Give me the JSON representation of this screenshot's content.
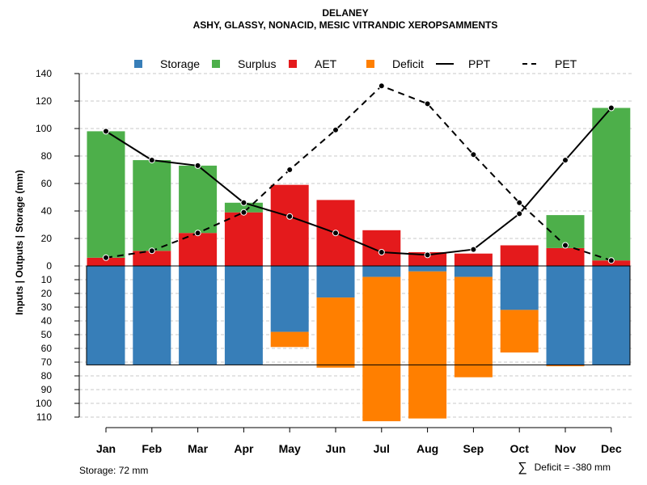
{
  "chart_data": {
    "type": "bar",
    "title": "DELANEY",
    "subtitle": "ASHY, GLASSY, NONACID, MESIC VITRANDIC XEROPSAMMENTS",
    "ylabel": "Inputs | Outputs | Storage    (mm)",
    "xlabel": "",
    "categories": [
      "Jan",
      "Feb",
      "Mar",
      "Apr",
      "May",
      "Jun",
      "Jul",
      "Aug",
      "Sep",
      "Oct",
      "Nov",
      "Dec"
    ],
    "ylim_top": [
      0,
      140
    ],
    "ylim_bottom": [
      0,
      110
    ],
    "yticks_top": [
      0,
      20,
      40,
      60,
      80,
      100,
      120,
      140
    ],
    "yticks_bottom": [
      10,
      20,
      30,
      40,
      50,
      60,
      70,
      80,
      90,
      100,
      110
    ],
    "top_series": [
      {
        "name": "AET",
        "color": "#E41A1C",
        "values": [
          6,
          11,
          24,
          39,
          59,
          48,
          26,
          10,
          9,
          15,
          13,
          4
        ]
      },
      {
        "name": "Surplus",
        "color": "#4DAF4A",
        "values": [
          92,
          66,
          49,
          7,
          0,
          0,
          0,
          0,
          0,
          0,
          24,
          111
        ]
      }
    ],
    "bottom_series": [
      {
        "name": "Storage",
        "color": "#377EB8",
        "values": [
          72,
          72,
          72,
          72,
          48,
          23,
          8,
          4,
          8,
          32,
          72,
          72
        ]
      },
      {
        "name": "Deficit",
        "color": "#FF7F00",
        "values": [
          0,
          0,
          0,
          0,
          11,
          51,
          105,
          107,
          73,
          31,
          1,
          0
        ]
      }
    ],
    "line_series": [
      {
        "name": "PPT",
        "style": "solid",
        "values": [
          98,
          77,
          73,
          46,
          36,
          24,
          10,
          8,
          12,
          38,
          77,
          115
        ]
      },
      {
        "name": "PET",
        "style": "dashed",
        "values": [
          6,
          11,
          24,
          39,
          70,
          99,
          131,
          118,
          81,
          46,
          15,
          4
        ]
      }
    ],
    "storage_capacity": 72,
    "legend": {
      "position": "top",
      "items": [
        {
          "label": "Storage",
          "kind": "box",
          "color": "#377EB8"
        },
        {
          "label": "Surplus",
          "kind": "box",
          "color": "#4DAF4A"
        },
        {
          "label": "AET",
          "kind": "box",
          "color": "#E41A1C"
        },
        {
          "label": "Deficit",
          "kind": "box",
          "color": "#FF7F00"
        },
        {
          "label": "PPT",
          "kind": "line",
          "style": "solid"
        },
        {
          "label": "PET",
          "kind": "line",
          "style": "dashed"
        }
      ]
    },
    "footnote_left": "Storage: 72 mm",
    "footnote_right_symbol": "∑",
    "footnote_right": "Deficit = -380 mm",
    "grid": true
  }
}
